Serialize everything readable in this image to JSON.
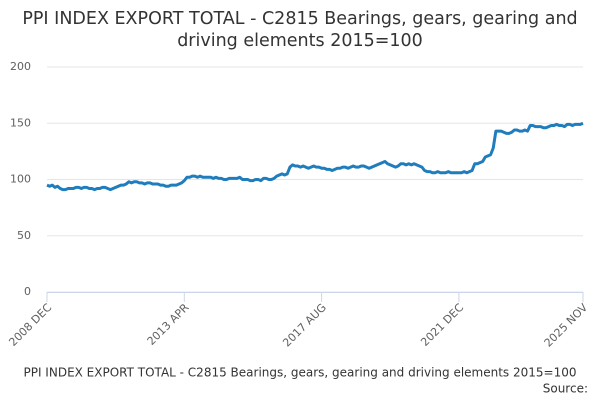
{
  "chart_data": {
    "type": "line",
    "title": "PPI INDEX EXPORT TOTAL - C2815 Bearings, gears, gearing and driving elements 2015=100",
    "caption": "PPI INDEX EXPORT TOTAL - C2815 Bearings, gears, gearing and driving elements 2015=100",
    "source": "Source:",
    "color": "#1f7dbd",
    "grid": true,
    "ylim": [
      0,
      200
    ],
    "yticks": [
      0,
      50,
      100,
      150,
      200
    ],
    "categories": [
      "2008 DEC",
      null,
      null,
      null,
      null,
      null,
      null,
      null,
      null,
      null,
      null,
      null,
      null,
      null,
      null,
      null,
      null,
      null,
      null,
      null,
      null,
      null,
      null,
      null,
      null,
      null,
      null,
      null,
      null,
      null,
      null,
      null,
      null,
      null,
      null,
      null,
      null,
      null,
      null,
      null,
      null,
      null,
      null,
      null,
      null,
      null,
      null,
      null,
      null,
      null,
      null,
      null,
      "2013 APR",
      null,
      null,
      null,
      null,
      null,
      null,
      null,
      null,
      null,
      null,
      null,
      null,
      null,
      null,
      null,
      null,
      null,
      null,
      null,
      null,
      null,
      null,
      null,
      null,
      null,
      null,
      null,
      null,
      null,
      null,
      null,
      null,
      null,
      null,
      null,
      null,
      null,
      null,
      null,
      null,
      null,
      null,
      null,
      null,
      null,
      null,
      null,
      null,
      null,
      null,
      null,
      "2017 AUG",
      null,
      null,
      null,
      null,
      null,
      null,
      null,
      null,
      null,
      null,
      null,
      null,
      null,
      null,
      null,
      null,
      null,
      null,
      null,
      null,
      null,
      null,
      null,
      null,
      null,
      null,
      null,
      null,
      null,
      null,
      null,
      null,
      null,
      null,
      null,
      null,
      null,
      null,
      null,
      null,
      null,
      null,
      null,
      null,
      null,
      null,
      null,
      null,
      null,
      null,
      null,
      "2021 DEC",
      null,
      null,
      null,
      null,
      null,
      null,
      null,
      null,
      null,
      null,
      null,
      null,
      null,
      null,
      null,
      null,
      null,
      null,
      null,
      null,
      null,
      null,
      null,
      null,
      null,
      null,
      null,
      null,
      null,
      null,
      null,
      null,
      null,
      null,
      null,
      null,
      null,
      null,
      null,
      null,
      null,
      null,
      null,
      null,
      null,
      null,
      "2025 NOV"
    ],
    "values": [
      95,
      94,
      95,
      93,
      94,
      92,
      91,
      91,
      92,
      92,
      92,
      93,
      93,
      92,
      93,
      93,
      92,
      92,
      91,
      92,
      92,
      93,
      93,
      92,
      91,
      92,
      93,
      94,
      95,
      95,
      96,
      98,
      97,
      98,
      98,
      97,
      97,
      96,
      97,
      97,
      96,
      96,
      96,
      95,
      95,
      94,
      94,
      95,
      95,
      95,
      96,
      97,
      99,
      102,
      102,
      103,
      103,
      102,
      103,
      102,
      102,
      102,
      102,
      101,
      102,
      101,
      101,
      100,
      100,
      101,
      101,
      101,
      101,
      102,
      100,
      100,
      100,
      99,
      99,
      100,
      100,
      99,
      101,
      101,
      100,
      100,
      101,
      103,
      104,
      105,
      104,
      105,
      111,
      113,
      112,
      112,
      111,
      112,
      111,
      110,
      111,
      112,
      111,
      111,
      110,
      110,
      109,
      109,
      108,
      109,
      110,
      110,
      111,
      111,
      110,
      111,
      112,
      111,
      111,
      112,
      112,
      111,
      110,
      111,
      112,
      113,
      114,
      115,
      116,
      114,
      113,
      112,
      111,
      112,
      114,
      114,
      113,
      114,
      113,
      114,
      113,
      112,
      111,
      108,
      107,
      107,
      106,
      106,
      107,
      106,
      106,
      106,
      107,
      106,
      106,
      106,
      106,
      106,
      107,
      106,
      107,
      108,
      114,
      114,
      115,
      116,
      120,
      121,
      122,
      128,
      143,
      143,
      143,
      142,
      141,
      141,
      142,
      144,
      144,
      143,
      143,
      144,
      143,
      148,
      148,
      147,
      147,
      147,
      146,
      146,
      147,
      148,
      148,
      149,
      148,
      148,
      147,
      149,
      149,
      148,
      149,
      149,
      149,
      150
    ]
  }
}
